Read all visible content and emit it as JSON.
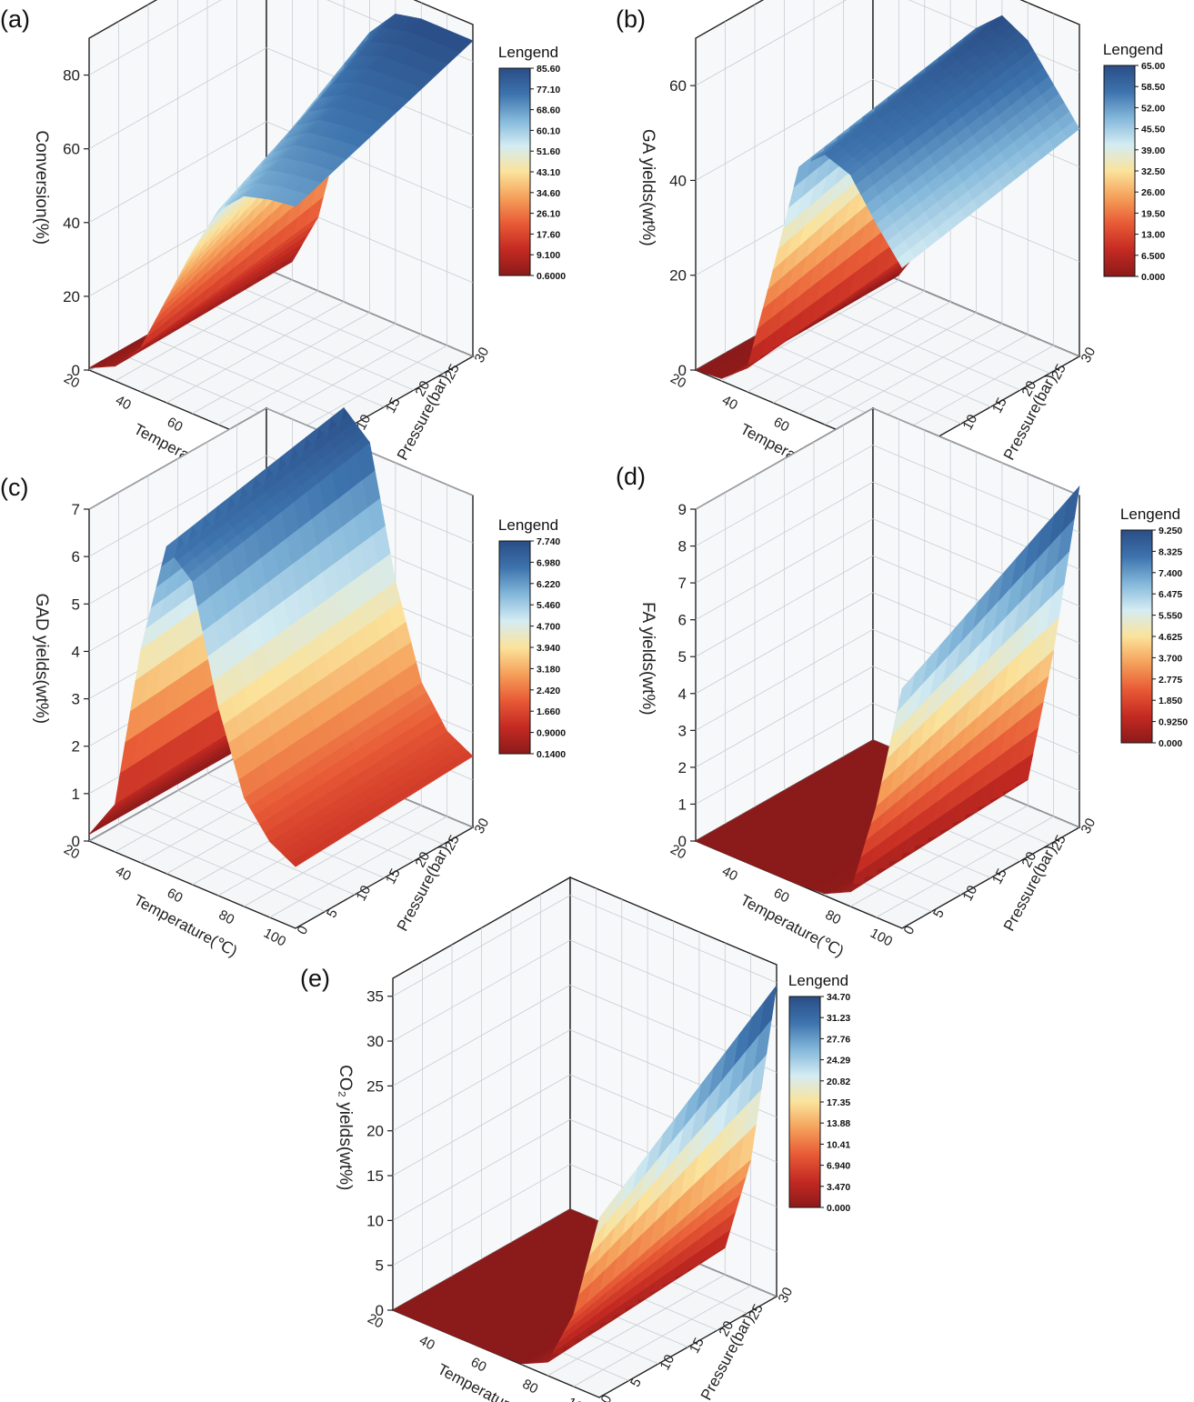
{
  "shared": {
    "legend_title": "Lengend",
    "x_axis_label": "Temperature(℃)",
    "y_axis_label": "Pressure(bar)",
    "x_ticks": [
      "20",
      "40",
      "60",
      "80",
      "100"
    ],
    "y_ticks": [
      "0",
      "5",
      "10",
      "15",
      "20",
      "25",
      "30"
    ],
    "colormap": [
      "#8b1a1a",
      "#c42a22",
      "#e85a36",
      "#f5a05a",
      "#fbe39b",
      "#d4ecf3",
      "#83b7da",
      "#3d73ad",
      "#2a4d86"
    ]
  },
  "chart_data": [
    {
      "type": "surface3d",
      "panel": "(a)",
      "zlabel": "Conversion(%)",
      "x_range": [
        20,
        100
      ],
      "y_range": [
        0,
        30
      ],
      "zlim": [
        0,
        90
      ],
      "z_ticks": [
        "0",
        "20",
        "40",
        "60",
        "80"
      ],
      "legend_ticks": [
        "85.60",
        "77.10",
        "68.60",
        "60.10",
        "51.60",
        "43.10",
        "34.60",
        "26.10",
        "17.60",
        "9.100",
        "0.6000"
      ],
      "color_range": [
        0.6,
        85.6
      ],
      "surface": {
        "x": [
          20,
          30,
          40,
          50,
          60,
          70,
          80,
          90,
          100
        ],
        "z_at_y0": [
          0.6,
          4,
          12,
          28,
          44,
          58,
          65,
          67,
          68
        ],
        "z_at_y30": [
          0.6,
          5,
          20,
          50,
          76,
          84,
          85.6,
          85.6,
          85.6
        ]
      }
    },
    {
      "type": "surface3d",
      "panel": "(b)",
      "zlabel": "GA yields(wt%)",
      "x_range": [
        20,
        100
      ],
      "y_range": [
        0,
        30
      ],
      "zlim": [
        0,
        70
      ],
      "z_ticks": [
        "0",
        "20",
        "40",
        "60"
      ],
      "legend_ticks": [
        "65.00",
        "58.50",
        "52.00",
        "45.50",
        "39.00",
        "32.50",
        "26.00",
        "19.50",
        "13.00",
        "6.500",
        "0.000"
      ],
      "color_range": [
        0,
        65
      ],
      "surface": {
        "x": [
          20,
          30,
          40,
          50,
          60,
          70,
          80,
          90,
          100
        ],
        "z_at_y0": [
          0,
          0.5,
          5,
          28,
          52,
          57,
          55,
          47,
          40
        ],
        "z_at_y30": [
          0,
          1,
          10,
          40,
          60,
          65,
          62,
          55,
          48
        ]
      }
    },
    {
      "type": "surface3d",
      "panel": "(c)",
      "zlabel": "GAD yields(wt%)",
      "x_range": [
        20,
        100
      ],
      "y_range": [
        0,
        30
      ],
      "zlim": [
        0,
        7
      ],
      "z_ticks": [
        "0",
        "1",
        "2",
        "3",
        "4",
        "5",
        "6",
        "7"
      ],
      "legend_ticks": [
        "7.740",
        "6.980",
        "6.220",
        "5.460",
        "4.700",
        "3.940",
        "3.180",
        "2.420",
        "1.660",
        "0.9000",
        "0.1400"
      ],
      "color_range": [
        0.14,
        7.74
      ],
      "surface": {
        "x": [
          20,
          30,
          40,
          50,
          60,
          70,
          80,
          90,
          100
        ],
        "z_at_y0": [
          0.14,
          1,
          4.5,
          6.9,
          6.4,
          4,
          2.3,
          1.6,
          1.3
        ],
        "z_at_y30": [
          0.14,
          1.2,
          5,
          7.7,
          7.2,
          4.5,
          2.6,
          1.8,
          1.5
        ]
      }
    },
    {
      "type": "surface3d",
      "panel": "(d)",
      "zlabel": "FA yields(wt%)",
      "x_range": [
        20,
        100
      ],
      "y_range": [
        0,
        30
      ],
      "zlim": [
        0,
        9
      ],
      "z_ticks": [
        "0",
        "1",
        "2",
        "3",
        "4",
        "5",
        "6",
        "7",
        "8",
        "9"
      ],
      "legend_ticks": [
        "9.250",
        "8.325",
        "7.400",
        "6.475",
        "5.550",
        "4.625",
        "3.700",
        "2.775",
        "1.850",
        "0.9250",
        "0.000"
      ],
      "color_range": [
        0,
        9.25
      ],
      "surface": {
        "x": [
          20,
          30,
          40,
          50,
          60,
          70,
          80,
          90,
          100
        ],
        "z_at_y0": [
          0,
          0,
          0,
          0,
          0,
          0.05,
          0.4,
          3,
          6.5
        ],
        "z_at_y30": [
          0,
          0,
          0,
          0,
          0,
          0.1,
          0.7,
          4.5,
          9.25
        ]
      }
    },
    {
      "type": "surface3d",
      "panel": "(e)",
      "zlabel": "CO₂ yields(wt%)",
      "x_range": [
        20,
        100
      ],
      "y_range": [
        0,
        30
      ],
      "zlim": [
        0,
        37
      ],
      "z_ticks": [
        "0",
        "5",
        "10",
        "15",
        "20",
        "25",
        "30",
        "35"
      ],
      "legend_ticks": [
        "34.70",
        "31.23",
        "27.76",
        "24.29",
        "20.82",
        "17.35",
        "13.88",
        "10.41",
        "6.940",
        "3.470",
        "0.000"
      ],
      "color_range": [
        0,
        34.7
      ],
      "surface": {
        "x": [
          20,
          30,
          40,
          50,
          60,
          70,
          80,
          90,
          100
        ],
        "z_at_y0": [
          0,
          0,
          0,
          0,
          0,
          0.1,
          1.5,
          8,
          20
        ],
        "z_at_y30": [
          0,
          0,
          0,
          0,
          0,
          0.2,
          3,
          14,
          34.7
        ]
      }
    }
  ]
}
